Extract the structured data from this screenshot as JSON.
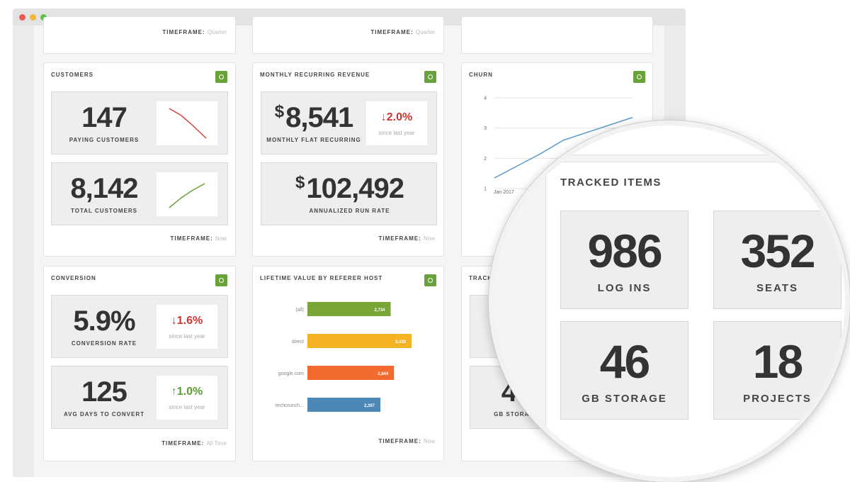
{
  "top_cards": [
    {
      "timeframe_label": "TIMEFRAME:",
      "timeframe": "Quarter"
    },
    {
      "timeframe_label": "TIMEFRAME:",
      "timeframe": "Quarter"
    }
  ],
  "customers": {
    "title": "CUSTOMERS",
    "metrics": [
      {
        "value": "147",
        "label": "PAYING CUSTOMERS"
      },
      {
        "value": "8,142",
        "label": "TOTAL CUSTOMERS"
      }
    ],
    "timeframe_label": "TIMEFRAME:",
    "timeframe": "Now"
  },
  "mrr": {
    "title": "MONTHLY RECURRING REVENUE",
    "metrics": [
      {
        "currency": "$",
        "value": "8,541",
        "label": "MONTHLY FLAT RECURRING",
        "change": "↓2.0%",
        "change_color": "#d0332e",
        "change_note": "since last year"
      },
      {
        "currency": "$",
        "value": "102,492",
        "label": "ANNUALIZED RUN RATE"
      }
    ],
    "timeframe_label": "TIMEFRAME:",
    "timeframe": "Now"
  },
  "churn": {
    "title": "CHURN",
    "type": "line",
    "x_label": "Jan 2017",
    "values": [
      1.35,
      1.75,
      2.15,
      2.6,
      2.85,
      3.1,
      3.35
    ],
    "color": "#5b9bc9",
    "ylim": [
      1,
      4
    ],
    "yticks": [
      1,
      2,
      3,
      4
    ]
  },
  "conversion": {
    "title": "CONVERSION",
    "metrics": [
      {
        "value": "5.9%",
        "label": "CONVERSION RATE",
        "change": "↓1.6%",
        "change_color": "#d0332e",
        "change_note": "since last year"
      },
      {
        "value": "125",
        "label": "AVG DAYS TO CONVERT",
        "change": "↑1.0%",
        "change_color": "#5a9e2f",
        "change_note": "since last year"
      }
    ],
    "timeframe_label": "TIMEFRAME:",
    "timeframe": "All Time"
  },
  "lifetime_value": {
    "title": "LIFETIME VALUE BY REFERER HOST",
    "type": "bar",
    "categories": [
      "(all)",
      "direct",
      "google.com",
      "techcrunch..."
    ],
    "values": [
      2734,
      3420,
      2844,
      2397
    ],
    "value_labels": [
      "2,734",
      "3,420",
      "2,844",
      "2,397"
    ],
    "colors": [
      "#7aa537",
      "#f5b324",
      "#f26a2e",
      "#4d87b6"
    ],
    "timeframe_label": "TIMEFRAME:",
    "timeframe": "Now"
  },
  "tracked_items": {
    "title": "TRACKED ITEMS",
    "metrics": [
      {
        "value": "986",
        "label": "LOG INS"
      },
      {
        "value": "352",
        "label": "SEATS"
      },
      {
        "value": "46",
        "label": "GB STORAGE"
      },
      {
        "value": "18",
        "label": "PROJECTS"
      }
    ]
  }
}
